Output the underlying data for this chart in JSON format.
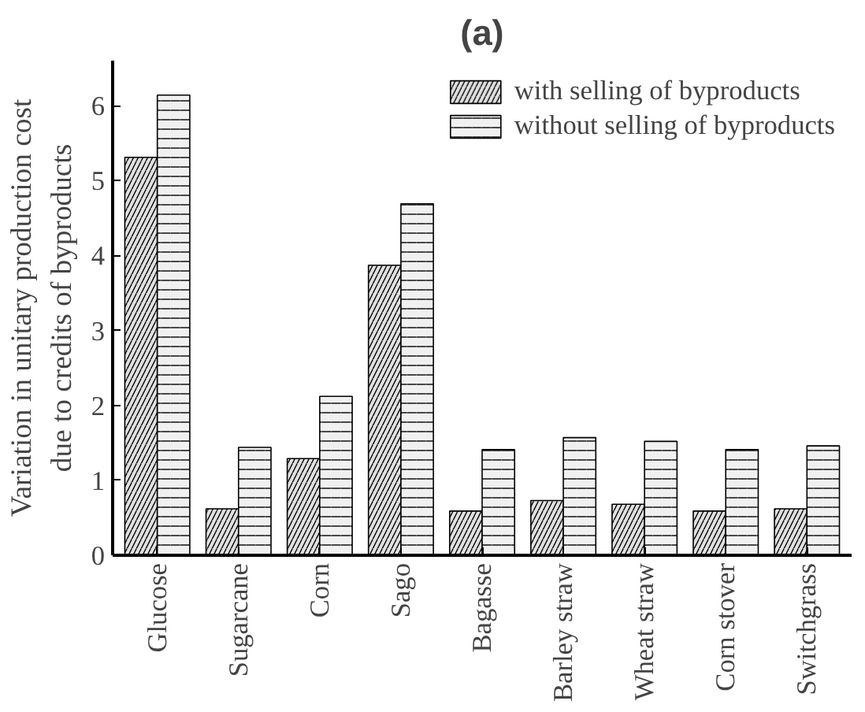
{
  "chart_data": {
    "type": "bar",
    "title": "(a)",
    "ylabel": "Variation in unitary production cost\ndue to credits of byproducts",
    "categories": [
      "Glucose",
      "Sugarcane",
      "Corn",
      "Sago",
      "Bagasse",
      "Barley straw",
      "Wheat straw",
      "Corn stover",
      "Switchgrass"
    ],
    "series": [
      {
        "name": "with selling of byproducts",
        "color": "#e0e0e0",
        "values": [
          5.31,
          0.62,
          1.29,
          3.87,
          0.59,
          0.73,
          0.68,
          0.59,
          0.62
        ]
      },
      {
        "name": "without selling of byproducts",
        "color": "#f0f0f0",
        "values": [
          6.14,
          1.44,
          2.12,
          4.69,
          1.41,
          1.57,
          1.52,
          1.41,
          1.46
        ]
      }
    ],
    "ylim": [
      0,
      6.6
    ],
    "yticks": [
      0,
      1,
      2,
      3,
      4,
      5,
      6
    ],
    "grid": false,
    "legend": "top right"
  }
}
